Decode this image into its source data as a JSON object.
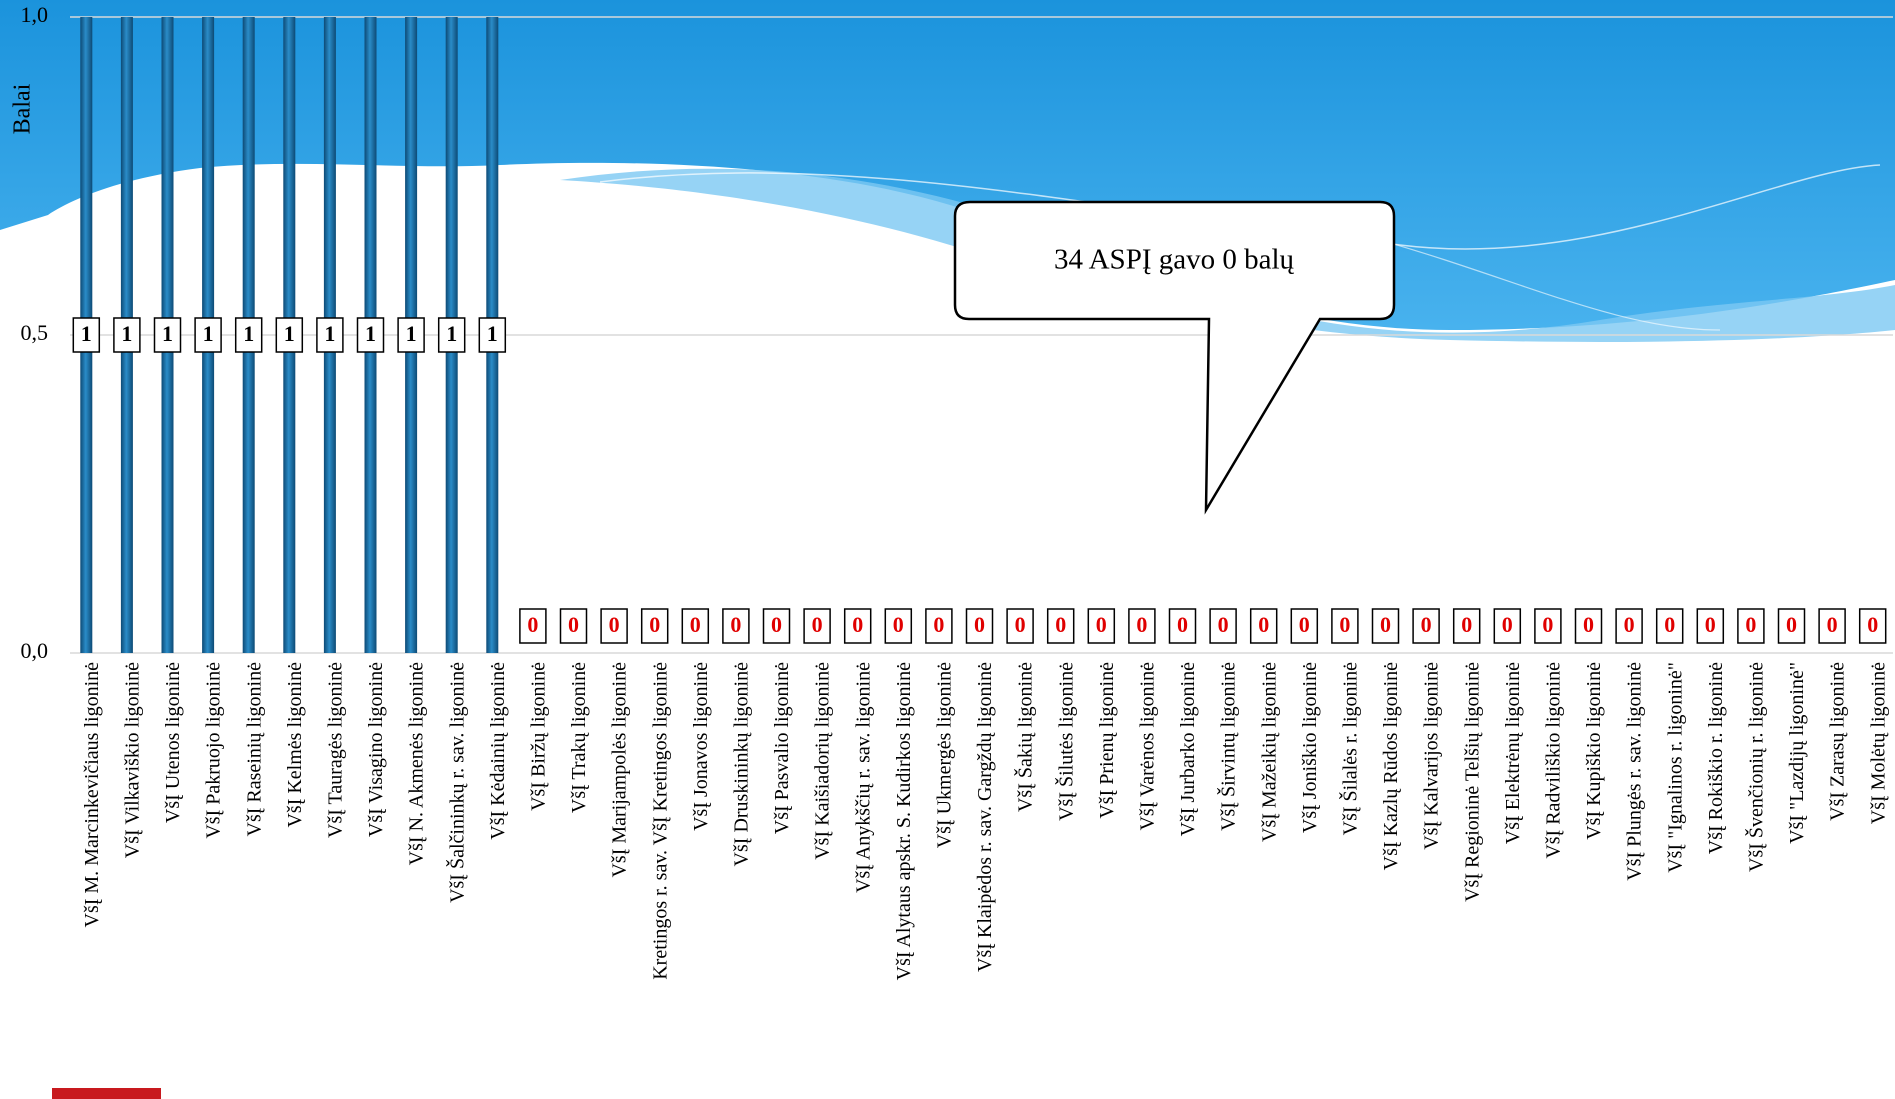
{
  "chart_data": {
    "type": "bar",
    "y_label": "Balai",
    "annotation": "34 ASPĮ gavo 0 balų",
    "categories": [
      "VšĮ M. Marcinkevičiaus ligoninė",
      "VšĮ Vilkaviškio ligoninė",
      "VšĮ Utenos ligoninė",
      "VšĮ Pakruojo ligoninė",
      "VšĮ Raseinių ligoninė",
      "VšĮ Kelmės ligoninė",
      "VšĮ Tauragės ligoninė",
      "VšĮ Visagino ligoninė",
      "VšĮ N. Akmenės ligoninė",
      "VšĮ Šalčininkų r. sav. ligoninė",
      "VšĮ Kėdainių ligoninė",
      "VšĮ Biržų ligoninė",
      "VšĮ Trakų ligoninė",
      "VšĮ Marijampolės ligoninė",
      "Kretingos r. sav. VšĮ Kretingos ligoninė",
      "VšĮ Jonavos ligoninė",
      "VšĮ Druskininkų ligoninė",
      "VšĮ Pasvalio ligoninė",
      "VšĮ Kaišiadorių ligoninė",
      "VšĮ Anykščių r. sav. ligoninė",
      "VšĮ Alytaus apskr. S. Kudirkos ligoninė",
      "VšĮ Ukmergės ligoninė",
      "VšĮ Klaipėdos r. sav. Gargždų ligoninė",
      "VšĮ Šakių ligoninė",
      "VšĮ Šilutės ligoninė",
      "VšĮ Prienų ligoninė",
      "VšĮ Varėnos ligoninė",
      "VšĮ Jurbarko ligoninė",
      "VšĮ Širvintų ligoninė",
      "VšĮ Mažeikių ligoninė",
      "VšĮ Joniškio ligoninė",
      "VšĮ Šilalės r. ligoninė",
      "VšĮ Kazlų Rūdos ligoninė",
      "VšĮ Kalvarijos ligoninė",
      "VšĮ Regioninė Telšių ligoninė",
      "VšĮ Elektrėnų ligoninė",
      "VšĮ Radviliškio ligoninė",
      "VšĮ Kupiškio ligoninė",
      "VšĮ Plungės r. sav. ligoninė",
      "VšĮ \"Ignalinos r. ligoninė\"",
      "VšĮ Rokiškio r. ligoninė",
      "VšĮ Švenčionių r. ligoninė",
      "VšĮ \"Lazdijų ligoninė\"",
      "VšĮ Zarasų ligoninė",
      "VšĮ Molėtų ligoninė"
    ],
    "values": [
      1,
      1,
      1,
      1,
      1,
      1,
      1,
      1,
      1,
      1,
      1,
      0,
      0,
      0,
      0,
      0,
      0,
      0,
      0,
      0,
      0,
      0,
      0,
      0,
      0,
      0,
      0,
      0,
      0,
      0,
      0,
      0,
      0,
      0,
      0,
      0,
      0,
      0,
      0,
      0,
      0,
      0,
      0,
      0,
      0
    ],
    "color": "#1d6fa6",
    "label_color": "#000000",
    "zero_label_color": "#e00000",
    "ylim": [
      0,
      1
    ],
    "yticks": [
      {
        "value": 0,
        "label": "0,0"
      },
      {
        "value": 0.5,
        "label": "0,5"
      },
      {
        "value": 1,
        "label": "1,0"
      }
    ],
    "grid": true
  }
}
